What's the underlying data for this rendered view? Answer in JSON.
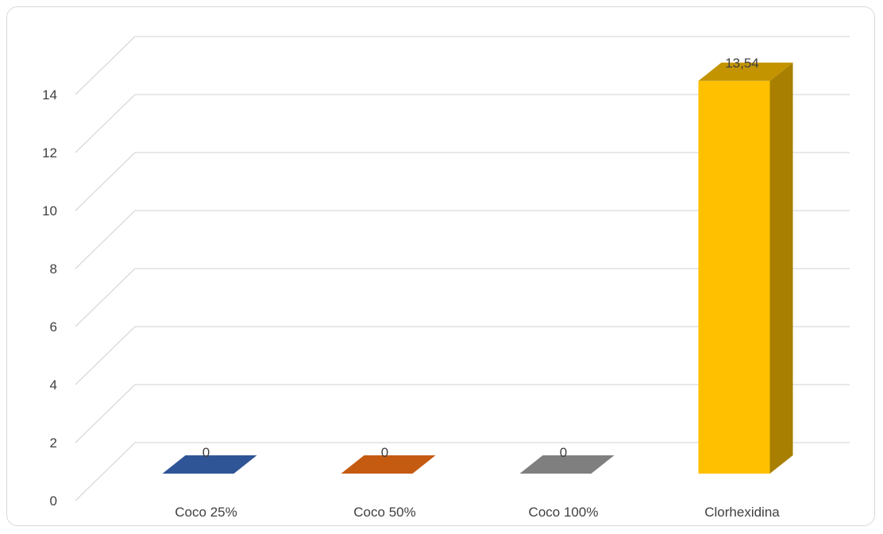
{
  "chart_data": {
    "type": "bar",
    "style": "3d-column",
    "title": "",
    "xlabel": "",
    "ylabel": "",
    "categories": [
      "Coco 25%",
      "Coco 50%",
      "Coco 100%",
      "Clorhexidina"
    ],
    "values": [
      0,
      0,
      0,
      13.54
    ],
    "data_labels": [
      "0",
      "0",
      "0",
      "13,54"
    ],
    "ylim": [
      0,
      14
    ],
    "y_ticks": [
      0,
      2,
      4,
      6,
      8,
      10,
      12,
      14
    ],
    "grid": true,
    "legend": "none",
    "colors": {
      "bars": [
        "#2f5597",
        "#c55a11",
        "#7f7f7f",
        "#ffc000"
      ],
      "bar_sides": [
        "#1f3864",
        "#843c0c",
        "#595959",
        "#a87f00"
      ],
      "bar_tops": [
        "#2f5597",
        "#c55a11",
        "#7f7f7f",
        "#c49400"
      ],
      "gridline": "#d9d9d9",
      "text": "#404040"
    }
  }
}
